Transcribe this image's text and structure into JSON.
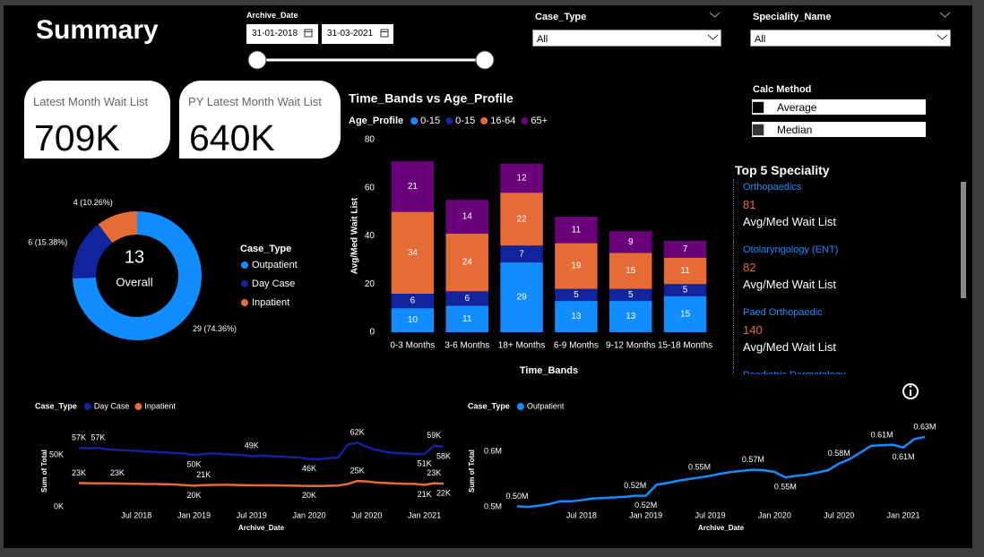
{
  "header": {
    "title": "Summary"
  },
  "filters": {
    "archive_date": {
      "label": "Archive_Date",
      "start": "31-01-2018",
      "end": "31-03-2021"
    },
    "case_type": {
      "label": "Case_Type",
      "value": "All"
    },
    "speciality_name": {
      "label": "Speciality_Name",
      "value": "All"
    }
  },
  "cards": [
    {
      "label": "Latest Month Wait List",
      "value": "709K"
    },
    {
      "label": "PY Latest Month Wait List",
      "value": "640K"
    }
  ],
  "calc_method": {
    "title": "Calc Method",
    "options": [
      "Average",
      "Median"
    ]
  },
  "top_specialities": {
    "title": "Top 5 Speciality",
    "items": [
      {
        "name": "Orthopaedics",
        "value": 81,
        "metric": "Avg/Med Wait List"
      },
      {
        "name": "Otolaryngology (ENT)",
        "value": 82,
        "metric": "Avg/Med Wait List"
      },
      {
        "name": "Paed Orthopaedic",
        "value": 140,
        "metric": "Avg/Med Wait List"
      },
      {
        "name": "Paediatric Dermatology"
      }
    ]
  },
  "chart_data": [
    {
      "type": "donut",
      "legend_title": "Case_Type",
      "center_value": 13,
      "center_label": "Overall",
      "categories": [
        "Outpatient",
        "Day Case",
        "Inpatient"
      ],
      "values": [
        29,
        6,
        4
      ],
      "value_labels": [
        "29 (74.36%)",
        "6 (15.38%)",
        "4 (10.26%)"
      ],
      "colors": [
        "#118dff",
        "#12239e",
        "#e66c37"
      ]
    },
    {
      "type": "bar",
      "stacked": true,
      "title": "Time_Bands vs Age_Profile",
      "legend_title": "Age_Profile",
      "x_label": "Time_Bands",
      "y_label": "Avg/Med Wait List",
      "categories": [
        "0-3 Months",
        "3-6 Months",
        "18+ Months",
        "6-9 Months",
        "9-12 Months",
        "15-18 Months"
      ],
      "series": [
        {
          "name": "0-15",
          "color": "#118dff",
          "values": [
            10,
            11,
            29,
            13,
            13,
            15
          ]
        },
        {
          "name": "0-15",
          "color": "#12239e",
          "values": [
            6,
            6,
            7,
            5,
            5,
            5
          ]
        },
        {
          "name": "16-64",
          "color": "#e66c37",
          "values": [
            34,
            24,
            22,
            19,
            15,
            11
          ]
        },
        {
          "name": "65+",
          "color": "#6b007b",
          "values": [
            21,
            14,
            12,
            11,
            9,
            7
          ]
        }
      ],
      "ylim": [
        0,
        80
      ],
      "yticks": [
        0,
        20,
        40,
        60,
        80
      ],
      "grid": false
    },
    {
      "type": "line",
      "legend_title": "Case_Type",
      "x_label": "Archive_Date",
      "y_label": "Sum of Total",
      "x": [
        "2018-01",
        "2018-02",
        "2018-03",
        "2018-04",
        "2018-05",
        "2018-06",
        "2018-07",
        "2018-08",
        "2018-09",
        "2018-10",
        "2018-11",
        "2018-12",
        "2019-01",
        "2019-02",
        "2019-03",
        "2019-04",
        "2019-05",
        "2019-06",
        "2019-07",
        "2019-08",
        "2019-09",
        "2019-10",
        "2019-11",
        "2019-12",
        "2020-01",
        "2020-02",
        "2020-03",
        "2020-04",
        "2020-05",
        "2020-06",
        "2020-07",
        "2020-08",
        "2020-09",
        "2020-10",
        "2020-11",
        "2020-12",
        "2021-01",
        "2021-02",
        "2021-03"
      ],
      "xlim": [
        "2018-01",
        "2021-03"
      ],
      "xticks": [
        {
          "value": "2018-07",
          "label": "Jul 2018"
        },
        {
          "value": "2019-01",
          "label": "Jan 2019"
        },
        {
          "value": "2019-07",
          "label": "Jul 2019"
        },
        {
          "value": "2020-01",
          "label": "Jan 2020"
        },
        {
          "value": "2020-07",
          "label": "Jul 2020"
        },
        {
          "value": "2021-01",
          "label": "Jan 2021"
        }
      ],
      "ylim": [
        0,
        83000
      ],
      "yticks": [
        {
          "value": 0,
          "label": "0K"
        },
        {
          "value": 50000,
          "label": "50K"
        }
      ],
      "series": [
        {
          "name": "Day Case",
          "color": "#12239e",
          "values": [
            57000,
            56500,
            57000,
            55500,
            55000,
            54500,
            54000,
            53500,
            53000,
            52500,
            52000,
            51500,
            50000,
            51000,
            51500,
            51000,
            50500,
            50000,
            49000,
            49500,
            49000,
            48500,
            48000,
            47500,
            46000,
            46000,
            47000,
            47500,
            60000,
            62000,
            58000,
            55000,
            53000,
            52000,
            51500,
            51000,
            51000,
            59000,
            58000
          ],
          "value_labels": [
            "57K",
            null,
            "57K",
            null,
            null,
            null,
            null,
            null,
            null,
            null,
            null,
            null,
            "50K",
            null,
            null,
            null,
            null,
            null,
            "49K",
            null,
            null,
            null,
            null,
            null,
            "46K",
            null,
            null,
            null,
            null,
            "62K",
            null,
            null,
            null,
            null,
            null,
            null,
            "51K",
            "59K",
            "58K"
          ]
        },
        {
          "name": "Inpatient",
          "color": "#e66c37",
          "values": [
            23000,
            22800,
            22700,
            22700,
            22600,
            22400,
            22300,
            22100,
            22000,
            21800,
            21600,
            21000,
            20400,
            21000,
            21200,
            21300,
            21200,
            21000,
            20900,
            20800,
            20700,
            20600,
            20500,
            20300,
            20200,
            20100,
            20300,
            20500,
            22000,
            25000,
            24500,
            23500,
            23000,
            22600,
            22300,
            22200,
            21200,
            22800,
            22400
          ],
          "value_labels": [
            "23K",
            null,
            null,
            null,
            "23K",
            null,
            null,
            null,
            null,
            null,
            null,
            null,
            "20K",
            "21K",
            null,
            null,
            null,
            null,
            null,
            null,
            null,
            null,
            null,
            null,
            "20K",
            null,
            null,
            null,
            null,
            "25K",
            null,
            null,
            null,
            null,
            null,
            null,
            "21K",
            "23K",
            "22K"
          ]
        }
      ]
    },
    {
      "type": "line",
      "legend_title": "Case_Type",
      "x_label": "Archive_Date",
      "y_label": "Sum of Total",
      "x": [
        "2018-01",
        "2018-02",
        "2018-03",
        "2018-04",
        "2018-05",
        "2018-06",
        "2018-07",
        "2018-08",
        "2018-09",
        "2018-10",
        "2018-11",
        "2018-12",
        "2019-01",
        "2019-02",
        "2019-03",
        "2019-04",
        "2019-05",
        "2019-06",
        "2019-07",
        "2019-08",
        "2019-09",
        "2019-10",
        "2019-11",
        "2019-12",
        "2020-01",
        "2020-02",
        "2020-03",
        "2020-04",
        "2020-05",
        "2020-06",
        "2020-07",
        "2020-08",
        "2020-09",
        "2020-10",
        "2020-11",
        "2020-12",
        "2021-01",
        "2021-02",
        "2021-03"
      ],
      "xlim": [
        "2018-01",
        "2021-03"
      ],
      "xticks": [
        {
          "value": "2018-07",
          "label": "Jul 2018"
        },
        {
          "value": "2019-01",
          "label": "Jan 2019"
        },
        {
          "value": "2019-07",
          "label": "Jul 2019"
        },
        {
          "value": "2020-01",
          "label": "Jan 2020"
        },
        {
          "value": "2020-07",
          "label": "Jul 2020"
        },
        {
          "value": "2021-01",
          "label": "Jan 2021"
        }
      ],
      "ylim": [
        500000,
        655000
      ],
      "yticks": [
        {
          "value": 500000,
          "label": "0.5M"
        },
        {
          "value": 600000,
          "label": "0.6M"
        }
      ],
      "series": [
        {
          "name": "Outpatient",
          "color": "#118dff",
          "values": [
            501000,
            500000,
            502000,
            505000,
            510000,
            510000,
            512000,
            515000,
            516000,
            517000,
            518000,
            520000,
            520000,
            540000,
            543000,
            547000,
            550000,
            553000,
            556000,
            560000,
            563000,
            565000,
            567000,
            566000,
            563000,
            553000,
            556000,
            558000,
            562000,
            566000,
            578000,
            586000,
            598000,
            610000,
            611000,
            612000,
            607000,
            622000,
            626000
          ],
          "value_labels": [
            "0.50M",
            null,
            null,
            null,
            null,
            null,
            null,
            null,
            null,
            null,
            null,
            "0.52M",
            "0.52M",
            null,
            null,
            null,
            null,
            "0.55M",
            null,
            null,
            null,
            null,
            "0.57M",
            null,
            null,
            "0.55M",
            null,
            null,
            null,
            null,
            "0.58M",
            null,
            null,
            null,
            "0.61M",
            null,
            "0.61M",
            null,
            "0.63M"
          ]
        }
      ]
    }
  ]
}
